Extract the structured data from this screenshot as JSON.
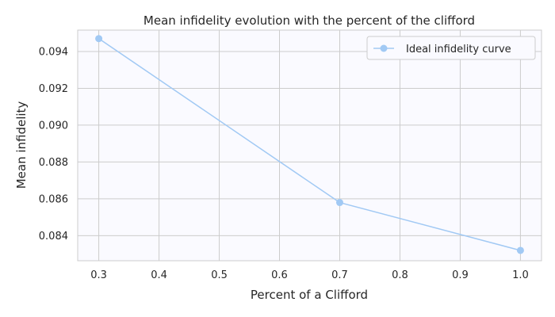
{
  "chart_data": {
    "type": "line",
    "title": "Mean infidelity evolution with the percent of the clifford",
    "xlabel": "Percent of a Clifford",
    "ylabel": "Mean infidelity",
    "x": [
      0.3,
      0.7,
      1.0
    ],
    "series": [
      {
        "name": "Ideal infidelity curve",
        "values": [
          0.0947,
          0.0858,
          0.0832
        ],
        "color": "#a1c9f4"
      }
    ],
    "xlim": [
      0.265,
      1.035
    ],
    "ylim": [
      0.08264,
      0.09516
    ],
    "xticks": [
      0.3,
      0.4,
      0.5,
      0.6,
      0.7,
      0.8,
      0.9,
      1.0
    ],
    "xtick_labels": [
      "0.3",
      "0.4",
      "0.5",
      "0.6",
      "0.7",
      "0.8",
      "0.9",
      "1.0"
    ],
    "yticks": [
      0.084,
      0.086,
      0.088,
      0.09,
      0.092,
      0.094
    ],
    "ytick_labels": [
      "0.084",
      "0.086",
      "0.088",
      "0.090",
      "0.092",
      "0.094"
    ],
    "grid": true,
    "legend": "top-right",
    "colors": {
      "plot_background": "#fafaff",
      "grid": "#cccccc",
      "spine": "#cccccc",
      "text": "#262626"
    }
  }
}
